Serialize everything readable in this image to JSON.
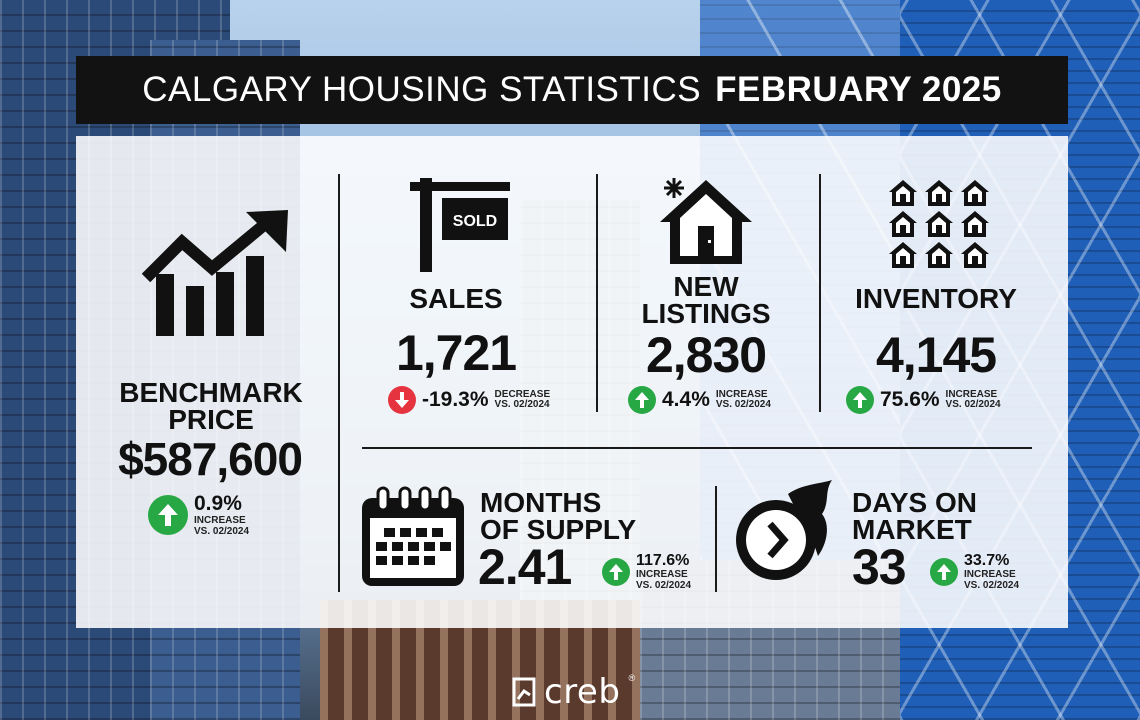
{
  "title": {
    "part1": "CALGARY HOUSING STATISTICS",
    "part2": "FEBRUARY 2025"
  },
  "benchmark": {
    "label_line1": "BENCHMARK",
    "label_line2": "PRICE",
    "value": "$587,600",
    "change": "0.9%",
    "change_word": "INCREASE",
    "compare": "VS. 02/2024",
    "direction": "up",
    "icon": "trending-chart-icon"
  },
  "sales": {
    "label": "SALES",
    "value": "1,721",
    "change": "-19.3%",
    "change_word": "DECREASE",
    "compare": "VS. 02/2024",
    "direction": "down",
    "sign_text": "SOLD",
    "icon": "sold-sign-icon"
  },
  "new_listings": {
    "label_line1": "NEW",
    "label_line2": "LISTINGS",
    "value": "2,830",
    "change": "4.4%",
    "change_word": "INCREASE",
    "compare": "VS. 02/2024",
    "direction": "up",
    "icon": "house-icon"
  },
  "inventory": {
    "label": "INVENTORY",
    "value": "4,145",
    "change": "75.6%",
    "change_word": "INCREASE",
    "compare": "VS. 02/2024",
    "direction": "up",
    "icon": "houses-grid-icon"
  },
  "months_of_supply": {
    "label_line1": "MONTHS",
    "label_line2": "OF SUPPLY",
    "value": "2.41",
    "change": "117.6%",
    "change_word": "INCREASE",
    "compare": "VS. 02/2024",
    "direction": "up",
    "icon": "calendar-icon"
  },
  "days_on_market": {
    "label_line1": "DAYS ON",
    "label_line2": "MARKET",
    "value": "33",
    "change": "33.7%",
    "change_word": "INCREASE",
    "compare": "VS. 02/2024",
    "direction": "up",
    "icon": "clock-flame-icon"
  },
  "footer": {
    "brand": "creb",
    "registered": "®"
  },
  "colors": {
    "up": "#27a845",
    "down": "#e5343f",
    "title_bg": "#121212"
  }
}
